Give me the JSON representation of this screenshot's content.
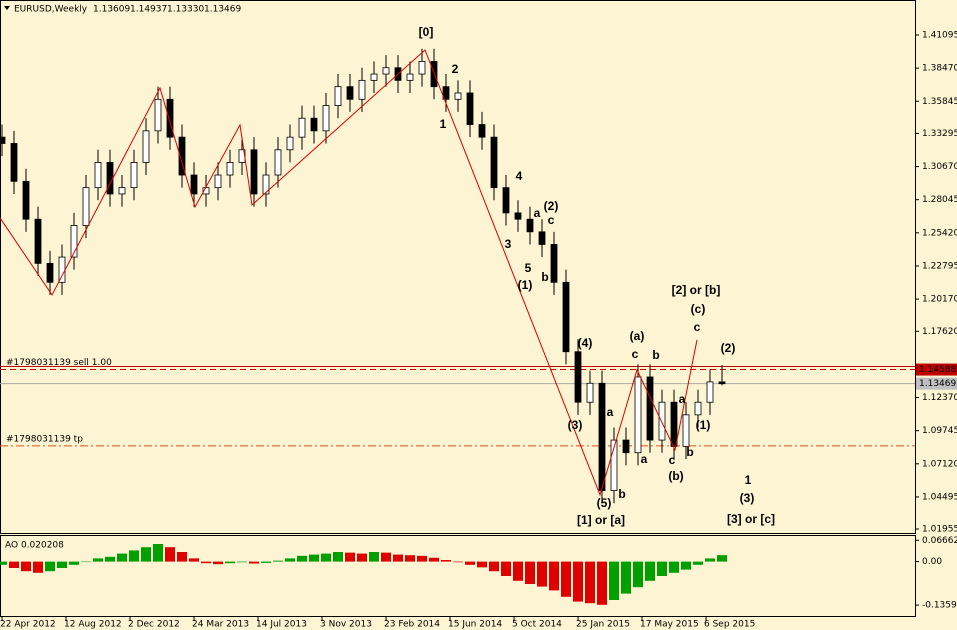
{
  "header": {
    "symbol": "EURUSD,Weekly",
    "ohlc": [
      "1.13609",
      "1.14937",
      "1.13330",
      "1.13469"
    ],
    "indicator": "AO 0.020208"
  },
  "chart_data": [
    {
      "type": "candlestick",
      "x": [
        0,
        3,
        6,
        9,
        12,
        15,
        18,
        21,
        24,
        27,
        30,
        33,
        36,
        39,
        42,
        45,
        48,
        51,
        54,
        57,
        60,
        63,
        66,
        69,
        72,
        75,
        78,
        81,
        84,
        87,
        90,
        93,
        96,
        99,
        102,
        105,
        108,
        111,
        114,
        117,
        120,
        123,
        126,
        129,
        132,
        135,
        138,
        141,
        144,
        147,
        150,
        153,
        156,
        159,
        162,
        165,
        168,
        171,
        174,
        177,
        180
      ],
      "open": [
        1.33,
        1.325,
        1.295,
        1.265,
        1.23,
        1.215,
        1.235,
        1.26,
        1.29,
        1.31,
        1.285,
        1.29,
        1.31,
        1.335,
        1.36,
        1.33,
        1.3,
        1.285,
        1.29,
        1.3,
        1.31,
        1.32,
        1.285,
        1.3,
        1.32,
        1.33,
        1.345,
        1.335,
        1.355,
        1.37,
        1.36,
        1.375,
        1.38,
        1.385,
        1.375,
        1.38,
        1.39,
        1.37,
        1.36,
        1.365,
        1.34,
        1.33,
        1.29,
        1.27,
        1.265,
        1.255,
        1.245,
        1.215,
        1.16,
        1.12,
        1.135,
        1.05,
        1.09,
        1.08,
        1.14,
        1.09,
        1.12,
        1.085,
        1.11,
        1.12,
        1.13609
      ],
      "high": [
        1.34,
        1.335,
        1.305,
        1.275,
        1.24,
        1.245,
        1.27,
        1.3,
        1.32,
        1.32,
        1.3,
        1.32,
        1.345,
        1.37,
        1.37,
        1.34,
        1.31,
        1.3,
        1.31,
        1.32,
        1.33,
        1.33,
        1.31,
        1.33,
        1.34,
        1.355,
        1.355,
        1.365,
        1.38,
        1.38,
        1.385,
        1.39,
        1.395,
        1.395,
        1.39,
        1.4,
        1.4,
        1.38,
        1.375,
        1.375,
        1.35,
        1.34,
        1.3,
        1.28,
        1.275,
        1.265,
        1.255,
        1.225,
        1.17,
        1.145,
        1.145,
        1.1,
        1.1,
        1.15,
        1.15,
        1.13,
        1.13,
        1.12,
        1.13,
        1.146,
        1.14937
      ],
      "low": [
        1.315,
        1.285,
        1.255,
        1.22,
        1.205,
        1.205,
        1.225,
        1.25,
        1.28,
        1.275,
        1.275,
        1.28,
        1.3,
        1.325,
        1.32,
        1.29,
        1.275,
        1.275,
        1.28,
        1.29,
        1.3,
        1.275,
        1.275,
        1.29,
        1.31,
        1.32,
        1.325,
        1.325,
        1.345,
        1.35,
        1.35,
        1.365,
        1.37,
        1.365,
        1.365,
        1.37,
        1.36,
        1.35,
        1.35,
        1.33,
        1.32,
        1.28,
        1.26,
        1.255,
        1.245,
        1.235,
        1.205,
        1.15,
        1.11,
        1.11,
        1.04,
        1.04,
        1.07,
        1.07,
        1.08,
        1.08,
        1.075,
        1.075,
        1.1,
        1.11,
        1.1333
      ],
      "close": [
        1.325,
        1.295,
        1.265,
        1.23,
        1.215,
        1.235,
        1.26,
        1.29,
        1.31,
        1.285,
        1.29,
        1.31,
        1.335,
        1.36,
        1.33,
        1.3,
        1.285,
        1.29,
        1.3,
        1.31,
        1.32,
        1.285,
        1.3,
        1.32,
        1.33,
        1.345,
        1.335,
        1.355,
        1.37,
        1.36,
        1.375,
        1.38,
        1.385,
        1.375,
        1.38,
        1.39,
        1.37,
        1.36,
        1.365,
        1.34,
        1.33,
        1.29,
        1.27,
        1.265,
        1.255,
        1.245,
        1.215,
        1.16,
        1.12,
        1.135,
        1.05,
        1.09,
        1.08,
        1.14,
        1.09,
        1.12,
        1.085,
        1.11,
        1.12,
        1.13609,
        1.13469
      ],
      "xlim": [
        -0.5,
        228.25
      ],
      "xticks": [
        {
          "value": 0,
          "label": "22 Apr 2012"
        },
        {
          "value": 16,
          "label": "12 Aug 2012"
        },
        {
          "value": 32,
          "label": "2 Dec 2012"
        },
        {
          "value": 48,
          "label": "24 Mar 2013"
        },
        {
          "value": 64,
          "label": "14 Jul 2013"
        },
        {
          "value": 80,
          "label": "3 Nov 2013"
        },
        {
          "value": 96,
          "label": "23 Feb 2014"
        },
        {
          "value": 112,
          "label": "15 Jun 2014"
        },
        {
          "value": 128,
          "label": "5 Oct 2014"
        },
        {
          "value": 144,
          "label": "25 Jan 2015"
        },
        {
          "value": 160,
          "label": "17 May 2015"
        },
        {
          "value": 176,
          "label": "6 Sep 2015"
        }
      ],
      "ylim": [
        1.01638,
        1.43867
      ],
      "yticks": [
        1.41095,
        {
          "value": 1.3847,
          "label": "1.38470"
        },
        1.35845,
        1.33295,
        {
          "value": 1.3067,
          "label": "1.30670"
        },
        1.28045,
        {
          "value": 1.2542,
          "label": "1.25420"
        },
        1.22795,
        {
          "value": 1.2017,
          "label": "1.20170"
        },
        {
          "value": 1.1762,
          "label": "1.17620"
        },
        {
          "value": 1.1237,
          "label": "1.12370"
        },
        1.09745,
        {
          "value": 1.0712,
          "label": "1.07120"
        },
        1.04495,
        1.01955
      ],
      "current_price": 1.13469,
      "orders": [
        {
          "label": "#1798031139 sell 1.00",
          "price": 1.14588,
          "color": "#c00000"
        },
        {
          "label": "#1798031139 tp",
          "price": 1.0854,
          "color": "#e05020"
        }
      ],
      "zigzag": {
        "color": "#e00000",
        "x": [
          -0.5,
          12.5,
          39.5,
          48.25,
          59.5,
          62.5,
          105.75,
          149.5,
          158.75,
          168.25,
          173.75
        ],
        "y": [
          1.266,
          1.205,
          1.369,
          1.2747,
          1.3397,
          1.2763,
          1.3991,
          1.0466,
          1.1456,
          1.0823,
          1.1694
        ]
      },
      "annotations": [
        {
          "text": "[0]",
          "color": "#2e6b2e"
        },
        {
          "text": "2",
          "color": "#8b0000"
        },
        {
          "text": "1",
          "color": "#8b0000"
        },
        {
          "text": "4",
          "color": "#8b0000"
        },
        {
          "text": "3",
          "color": "#8b0000"
        },
        {
          "text": "5",
          "color": "#8b0000"
        },
        {
          "text": "(1)",
          "color": "#4a4ad0"
        },
        {
          "text": "a",
          "color": "#8b0000"
        },
        {
          "text": "c",
          "color": "#8b0000"
        },
        {
          "text": "(2)",
          "color": "#4a4ad0"
        },
        {
          "text": "b",
          "color": "#8b0000"
        },
        {
          "text": "(4)",
          "color": "#4a4ad0"
        },
        {
          "text": "(3)",
          "color": "#4a4ad0"
        },
        {
          "text": "(5)",
          "color": "#4a4ad0"
        },
        {
          "text": "[1] or [a]",
          "color": "#2e6b2e"
        },
        {
          "text": "a",
          "color": "#8b0000"
        },
        {
          "text": "b",
          "color": "#8b0000"
        },
        {
          "text": "(a)",
          "color": "#4a4ad0"
        },
        {
          "text": "c",
          "color": "#8b0000"
        },
        {
          "text": "b",
          "color": "#8b0000"
        },
        {
          "text": "a",
          "color": "#8b0000"
        },
        {
          "text": "a",
          "color": "#8b0000"
        },
        {
          "text": "c",
          "color": "#8b0000"
        },
        {
          "text": "(b)",
          "color": "#4a4ad0"
        },
        {
          "text": "b",
          "color": "#8b0000"
        },
        {
          "text": "(1)",
          "color": "#4a4ad0"
        },
        {
          "text": "(c)",
          "color": "#4a4ad0"
        },
        {
          "text": "c",
          "color": "#8b0000"
        },
        {
          "text": "[2] or [b]",
          "color": "#2e6b2e"
        },
        {
          "text": "(2)",
          "color": "#4a4ad0"
        },
        {
          "text": "1",
          "color": "#8b0000"
        },
        {
          "text": "(3)",
          "color": "#4a4ad0"
        },
        {
          "text": "[3] or [c]",
          "color": "#2e6b2e"
        }
      ]
    },
    {
      "type": "histogram_ao",
      "values": [
        -0.01,
        -0.02,
        -0.03,
        -0.035,
        -0.03,
        -0.02,
        -0.01,
        0.0,
        0.01,
        0.015,
        0.025,
        0.035,
        0.045,
        0.055,
        0.045,
        0.03,
        0.01,
        -0.005,
        -0.008,
        -0.005,
        -0.002,
        -0.006,
        -0.004,
        0.003,
        0.01,
        0.018,
        0.022,
        0.025,
        0.03,
        0.028,
        0.025,
        0.03,
        0.028,
        0.022,
        0.02,
        0.018,
        0.012,
        0.005,
        -0.002,
        -0.01,
        -0.018,
        -0.03,
        -0.045,
        -0.06,
        -0.07,
        -0.078,
        -0.09,
        -0.11,
        -0.125,
        -0.13,
        -0.135,
        -0.12,
        -0.1,
        -0.08,
        -0.06,
        -0.045,
        -0.035,
        -0.025,
        -0.01,
        0.01,
        0.020208
      ],
      "up_color": "#00a000",
      "down_color": "#e00000",
      "ylim": [
        -0.17,
        0.08
      ],
      "yticks": [
        0.066622,
        {
          "value": 0,
          "label": "0.00"
        },
        -0.135932
      ]
    }
  ]
}
